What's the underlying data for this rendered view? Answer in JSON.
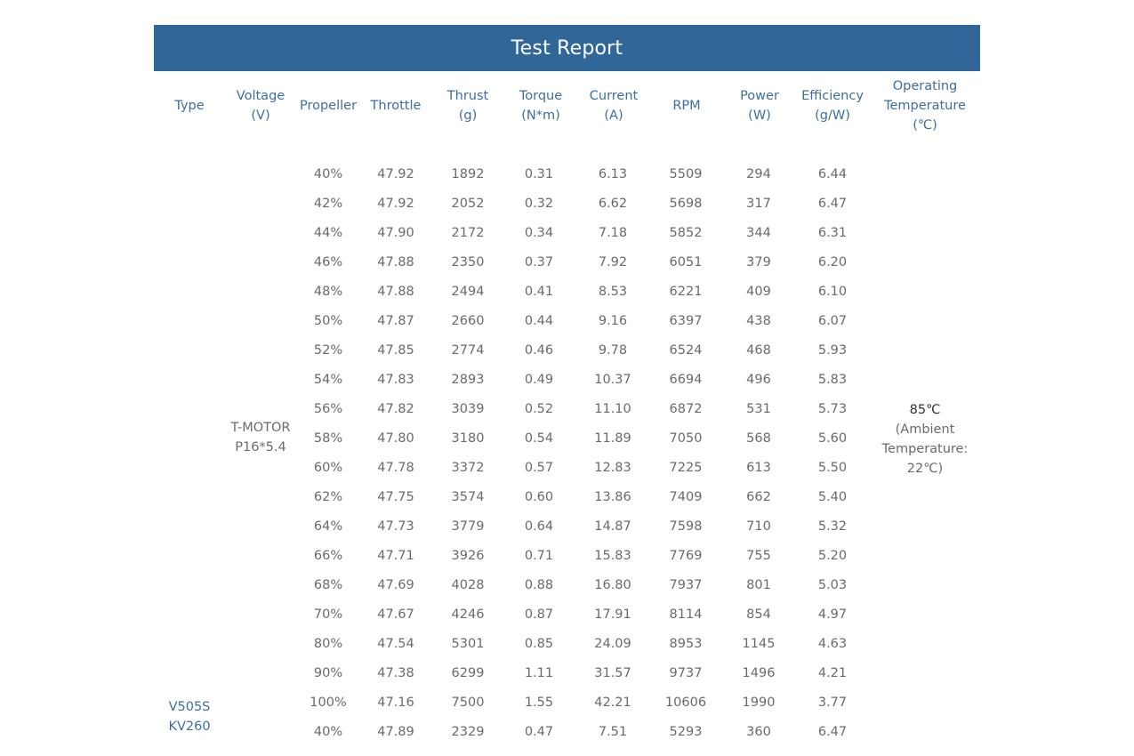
{
  "report": {
    "title": "Test Report"
  },
  "headers": [
    [
      "Type"
    ],
    [
      "Voltage",
      "(V)"
    ],
    [
      "Propeller"
    ],
    [
      "Throttle"
    ],
    [
      "Thrust",
      "(g)"
    ],
    [
      "Torque",
      "(N*m)"
    ],
    [
      "Current",
      "(A)"
    ],
    [
      "RPM"
    ],
    [
      "Power",
      "(W)"
    ],
    [
      "Efficiency",
      "(g/W)"
    ],
    [
      "Operating",
      "Temperature",
      "(℃)"
    ]
  ],
  "type_cell": [
    "V505S",
    "KV260"
  ],
  "propeller_cell": [
    "T-MOTOR",
    "P16*5.4"
  ],
  "temperature_cell": {
    "main": "85℃",
    "note": [
      "(Ambient",
      "Temperature:",
      "22℃)"
    ]
  },
  "rows": [
    [
      "40%",
      "47.92",
      "1892",
      "0.31",
      "6.13",
      "5509",
      "294",
      "6.44"
    ],
    [
      "42%",
      "47.92",
      "2052",
      "0.32",
      "6.62",
      "5698",
      "317",
      "6.47"
    ],
    [
      "44%",
      "47.90",
      "2172",
      "0.34",
      "7.18",
      "5852",
      "344",
      "6.31"
    ],
    [
      "46%",
      "47.88",
      "2350",
      "0.37",
      "7.92",
      "6051",
      "379",
      "6.20"
    ],
    [
      "48%",
      "47.88",
      "2494",
      "0.41",
      "8.53",
      "6221",
      "409",
      "6.10"
    ],
    [
      "50%",
      "47.87",
      "2660",
      "0.44",
      "9.16",
      "6397",
      "438",
      "6.07"
    ],
    [
      "52%",
      "47.85",
      "2774",
      "0.46",
      "9.78",
      "6524",
      "468",
      "5.93"
    ],
    [
      "54%",
      "47.83",
      "2893",
      "0.49",
      "10.37",
      "6694",
      "496",
      "5.83"
    ],
    [
      "56%",
      "47.82",
      "3039",
      "0.52",
      "11.10",
      "6872",
      "531",
      "5.73"
    ],
    [
      "58%",
      "47.80",
      "3180",
      "0.54",
      "11.89",
      "7050",
      "568",
      "5.60"
    ],
    [
      "60%",
      "47.78",
      "3372",
      "0.57",
      "12.83",
      "7225",
      "613",
      "5.50"
    ],
    [
      "62%",
      "47.75",
      "3574",
      "0.60",
      "13.86",
      "7409",
      "662",
      "5.40"
    ],
    [
      "64%",
      "47.73",
      "3779",
      "0.64",
      "14.87",
      "7598",
      "710",
      "5.32"
    ],
    [
      "66%",
      "47.71",
      "3926",
      "0.71",
      "15.83",
      "7769",
      "755",
      "5.20"
    ],
    [
      "68%",
      "47.69",
      "4028",
      "0.88",
      "16.80",
      "7937",
      "801",
      "5.03"
    ],
    [
      "70%",
      "47.67",
      "4246",
      "0.87",
      "17.91",
      "8114",
      "854",
      "4.97"
    ],
    [
      "80%",
      "47.54",
      "5301",
      "0.85",
      "24.09",
      "8953",
      "1145",
      "4.63"
    ],
    [
      "90%",
      "47.38",
      "6299",
      "1.11",
      "31.57",
      "9737",
      "1496",
      "4.21"
    ],
    [
      "100%",
      "47.16",
      "7500",
      "1.55",
      "42.21",
      "10606",
      "1990",
      "3.77"
    ],
    [
      "40%",
      "47.89",
      "2329",
      "0.47",
      "7.51",
      "5293",
      "360",
      "6.47"
    ]
  ],
  "colors": {
    "title_bar": "#316699",
    "header_text": "#3e6e9e",
    "body_text": "#6a6a6a"
  }
}
